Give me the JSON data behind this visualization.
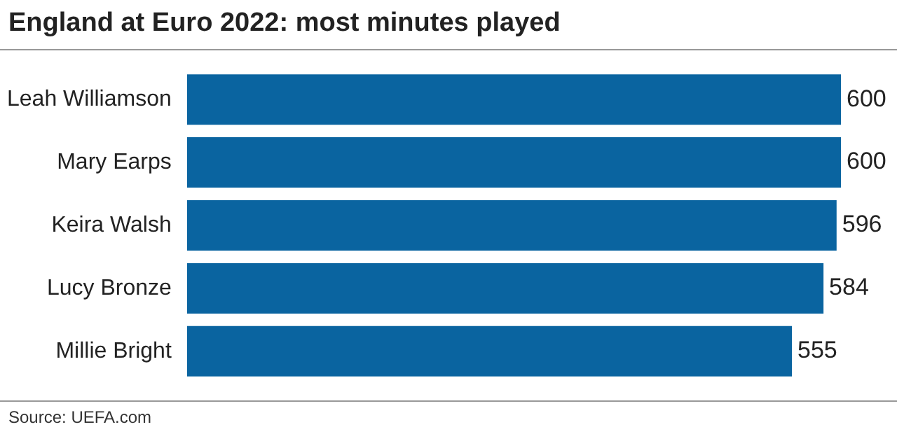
{
  "chart_data": {
    "type": "bar",
    "orientation": "horizontal",
    "title": "England at Euro 2022: most minutes played",
    "categories": [
      "Leah Williamson",
      "Mary Earps",
      "Keira Walsh",
      "Lucy Bronze",
      "Millie Bright"
    ],
    "values": [
      600,
      600,
      596,
      584,
      555
    ],
    "color": "#0a64a0",
    "data_labels": true,
    "legend": false,
    "annotations": [
      "Source: UEFA.com"
    ]
  }
}
